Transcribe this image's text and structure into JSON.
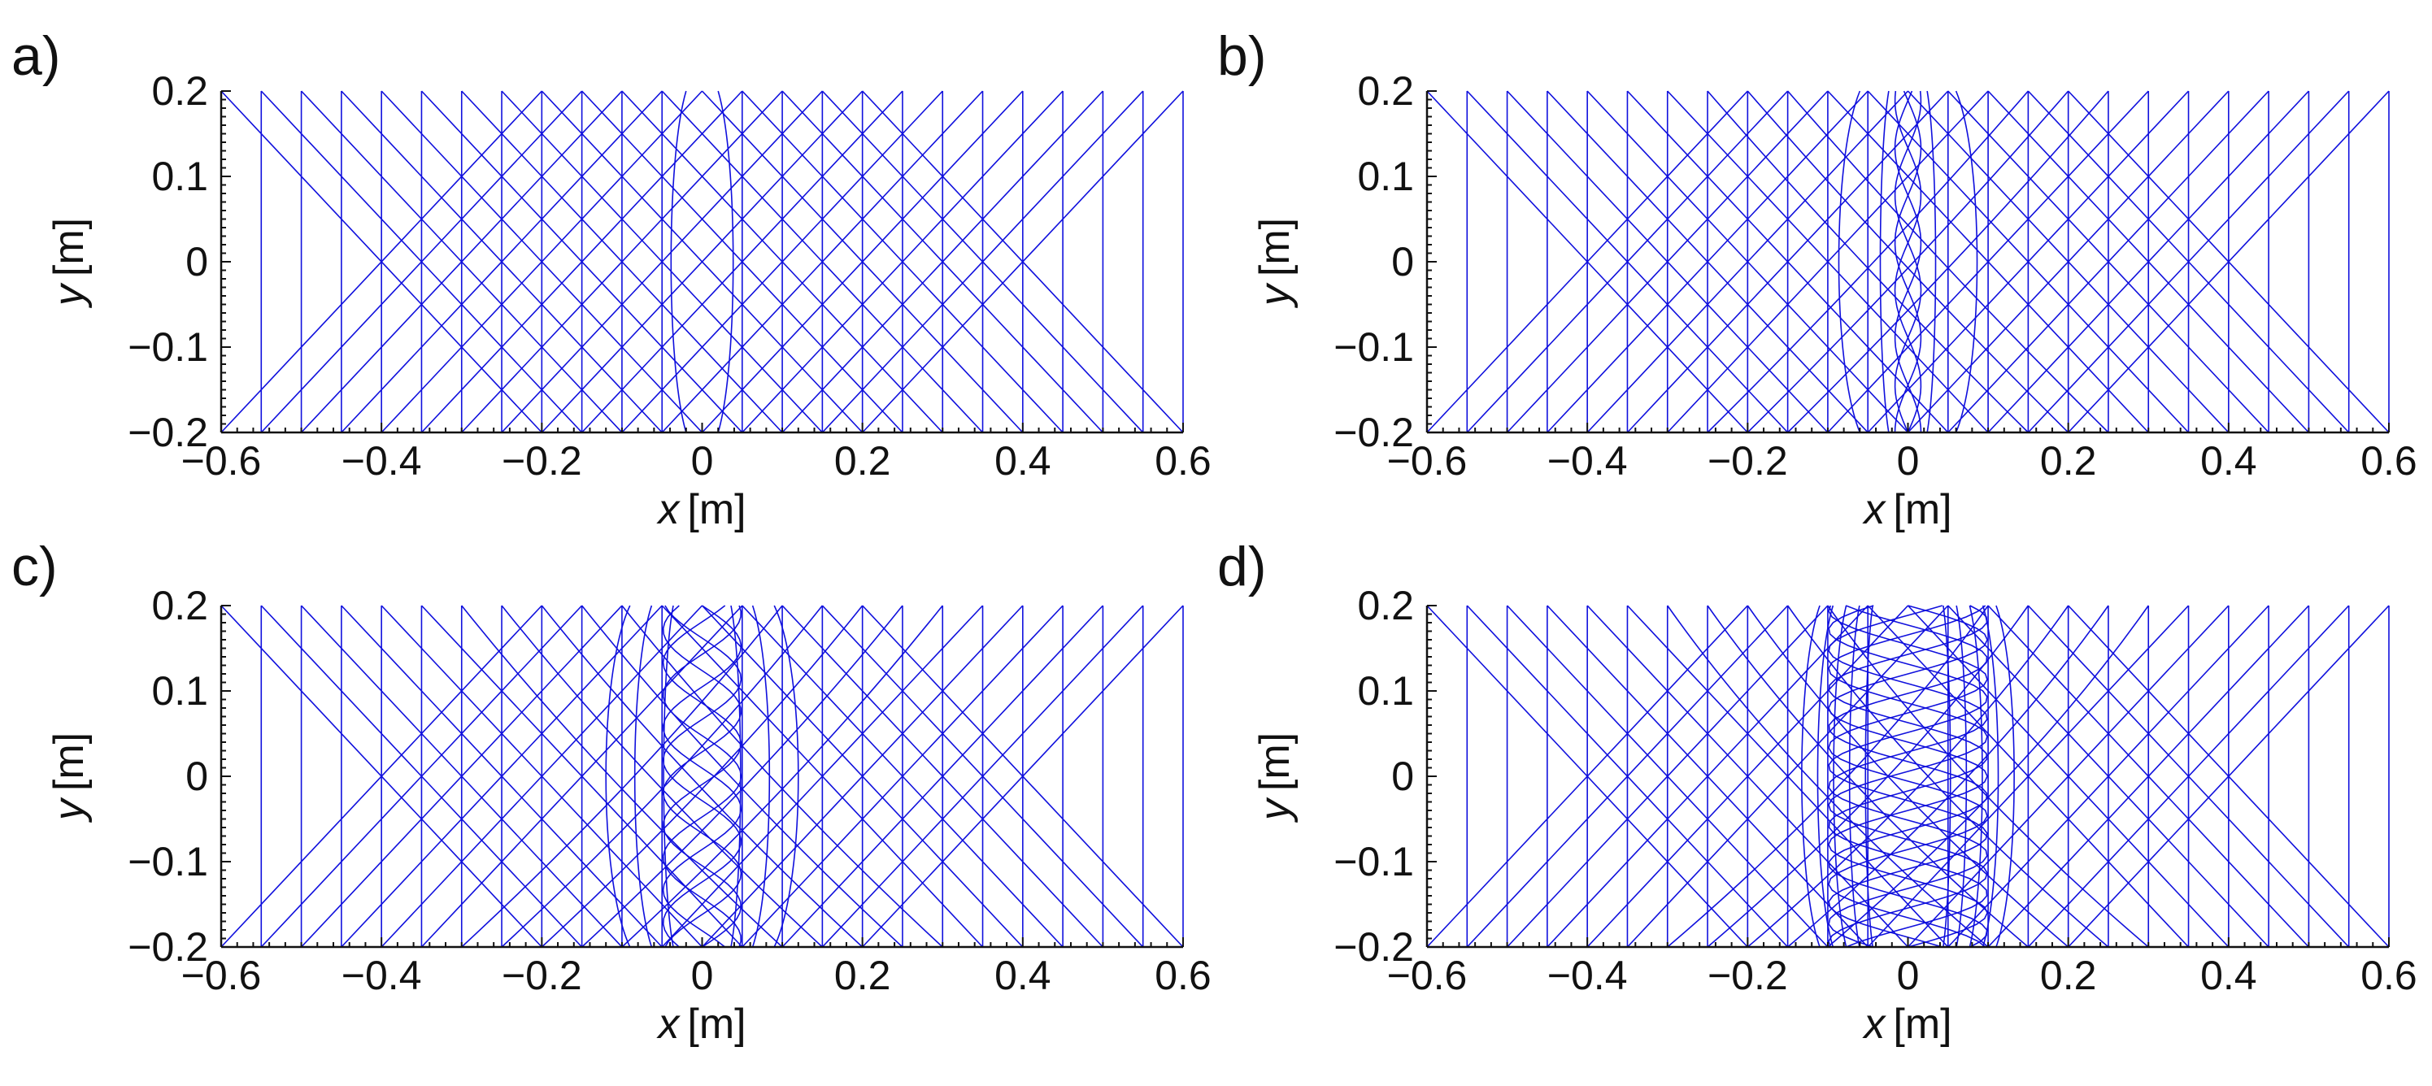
{
  "chart_data": [
    {
      "type": "line",
      "panel_label": "a)",
      "xlabel_var": "x",
      "xlabel_unit": "[m]",
      "ylabel_var": "y",
      "ylabel_unit": "[m]",
      "xlim": [
        -0.6,
        0.6
      ],
      "ylim": [
        -0.2,
        0.2
      ],
      "xticks": [
        "−0.6",
        "−0.4",
        "−0.2",
        "0",
        "0.2",
        "0.4",
        "0.6"
      ],
      "yticks": [
        "−0.2",
        "−0.1",
        "0",
        "0.1",
        "0.2"
      ],
      "grid": false,
      "line_color": "#1010dd",
      "series": [
        {
          "description_values": "ray trajectories reflecting between y=-0.2 and y=0.2",
          "vertical_x": [
            -0.55,
            -0.5,
            -0.45,
            -0.4,
            -0.35,
            -0.3,
            -0.25,
            -0.2,
            -0.15,
            -0.1,
            -0.05,
            0.05,
            0.1,
            0.15,
            0.2,
            0.25,
            0.3,
            0.35,
            0.4,
            0.45,
            0.5,
            0.55,
            0.6
          ],
          "lens_half_width": 0.02,
          "lens_bulge": 0.025,
          "curvature": 0.0
        }
      ]
    },
    {
      "type": "line",
      "panel_label": "b)",
      "xlabel_var": "x",
      "xlabel_unit": "[m]",
      "ylabel_var": "y",
      "ylabel_unit": "[m]",
      "xlim": [
        -0.6,
        0.6
      ],
      "ylim": [
        -0.2,
        0.2
      ],
      "xticks": [
        "−0.6",
        "−0.4",
        "−0.2",
        "0",
        "0.2",
        "0.4",
        "0.6"
      ],
      "yticks": [
        "−0.2",
        "−0.1",
        "0",
        "0.1",
        "0.2"
      ],
      "grid": false,
      "line_color": "#1010dd",
      "series": [
        {
          "vertical_x": [
            -0.55,
            -0.5,
            -0.45,
            -0.4,
            -0.35,
            -0.3,
            -0.25,
            -0.2,
            -0.15,
            -0.1,
            -0.05,
            0.05,
            0.1,
            0.15,
            0.2,
            0.25,
            0.3,
            0.35,
            0.4,
            0.45,
            0.5,
            0.55,
            0.6
          ],
          "lens_half_width": 0.06,
          "lens_bulge": 0.035,
          "curvature": 0.3
        }
      ]
    },
    {
      "type": "line",
      "panel_label": "c)",
      "xlabel_var": "x",
      "xlabel_unit": "[m]",
      "ylabel_var": "y",
      "ylabel_unit": "[m]",
      "xlim": [
        -0.6,
        0.6
      ],
      "ylim": [
        -0.2,
        0.2
      ],
      "xticks": [
        "−0.6",
        "−0.4",
        "−0.2",
        "0",
        "0.2",
        "0.4",
        "0.6"
      ],
      "yticks": [
        "−0.2",
        "−0.1",
        "0",
        "0.1",
        "0.2"
      ],
      "grid": false,
      "line_color": "#1010dd",
      "series": [
        {
          "vertical_x": [
            -0.55,
            -0.5,
            -0.45,
            -0.4,
            -0.35,
            -0.3,
            -0.25,
            -0.2,
            -0.15,
            -0.1,
            -0.05,
            0.05,
            0.1,
            0.15,
            0.2,
            0.25,
            0.3,
            0.35,
            0.4,
            0.45,
            0.5,
            0.55,
            0.6
          ],
          "lens_half_width": 0.09,
          "lens_bulge": 0.04,
          "curvature": 0.6
        }
      ]
    },
    {
      "type": "line",
      "panel_label": "d)",
      "xlabel_var": "x",
      "xlabel_unit": "[m]",
      "ylabel_var": "y",
      "ylabel_unit": "[m]",
      "xlim": [
        -0.6,
        0.6
      ],
      "ylim": [
        -0.2,
        0.2
      ],
      "xticks": [
        "−0.6",
        "−0.4",
        "−0.2",
        "0",
        "0.2",
        "0.4",
        "0.6"
      ],
      "yticks": [
        "−0.2",
        "−0.1",
        "0",
        "0.1",
        "0.2"
      ],
      "grid": false,
      "line_color": "#1010dd",
      "series": [
        {
          "vertical_x": [
            -0.55,
            -0.5,
            -0.45,
            -0.4,
            -0.35,
            -0.3,
            -0.25,
            -0.2,
            -0.15,
            -0.1,
            -0.05,
            0.05,
            0.1,
            0.15,
            0.2,
            0.25,
            0.3,
            0.35,
            0.4,
            0.45,
            0.5,
            0.55,
            0.6
          ],
          "lens_half_width": 0.11,
          "lens_bulge": 0.03,
          "curvature": 1.0
        }
      ]
    }
  ]
}
